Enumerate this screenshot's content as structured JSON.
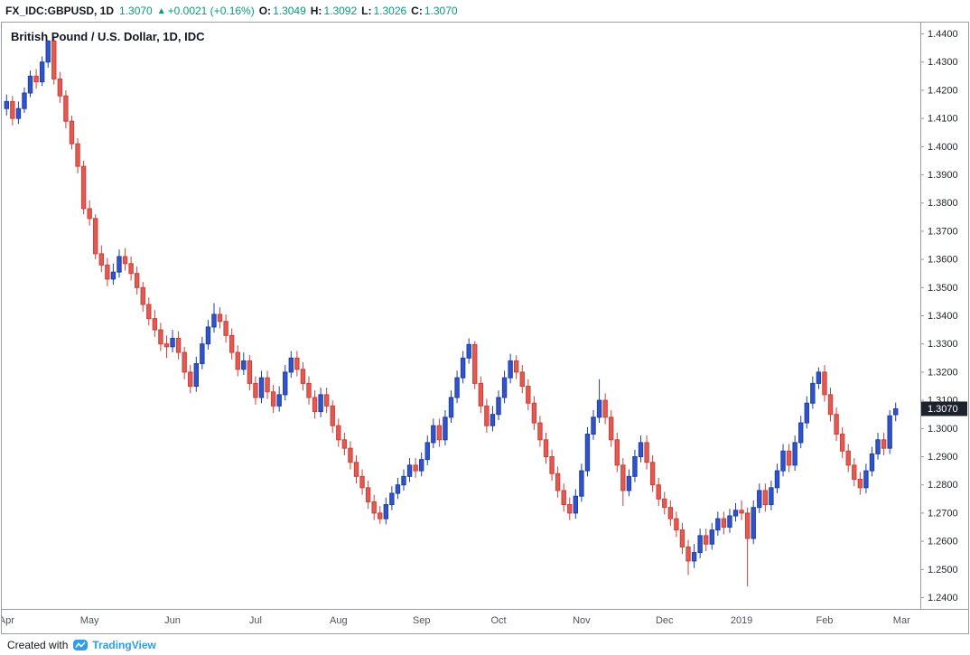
{
  "header": {
    "symbol": "FX_IDC:GBPUSD, 1D",
    "price": "1.3070",
    "arrow": "▲",
    "change": "+0.0021 (+0.16%)",
    "o_label": "O:",
    "o_value": "1.3049",
    "h_label": "H:",
    "h_value": "1.3092",
    "l_label": "L:",
    "l_value": "1.3026",
    "c_label": "C:",
    "c_value": "1.3070"
  },
  "chart": {
    "title": "British Pound / U.S. Dollar, 1D, IDC"
  },
  "footer": {
    "created_with": "Created with",
    "brand": "TradingView"
  },
  "colors": {
    "up_body": "#3253c9",
    "up_border": "#1e3fa6",
    "down_body": "#e25a52",
    "down_border": "#cf3f38",
    "green": "#089981",
    "badge_bg": "#1e222d",
    "axis_line": "#999ca3",
    "axis_text": "#23262d",
    "time_text": "#50535e",
    "brand_blue": "#2f9de8"
  },
  "chart_data": {
    "type": "candlestick",
    "symbol": "FX_IDC:GBPUSD",
    "timeframe": "1D",
    "title": "British Pound / U.S. Dollar, 1D, IDC",
    "last_price": 1.307,
    "ylim": [
      1.236,
      1.444
    ],
    "y_tick_min": 1.24,
    "y_tick_max": 1.44,
    "y_tick_step": 0.01,
    "x_labels": [
      {
        "label": "Apr",
        "i": 0
      },
      {
        "label": "May",
        "i": 14
      },
      {
        "label": "Jun",
        "i": 28
      },
      {
        "label": "Jul",
        "i": 42
      },
      {
        "label": "Aug",
        "i": 56
      },
      {
        "label": "Sep",
        "i": 70
      },
      {
        "label": "Oct",
        "i": 83
      },
      {
        "label": "Nov",
        "i": 97
      },
      {
        "label": "Dec",
        "i": 111
      },
      {
        "label": "2019",
        "i": 124
      },
      {
        "label": "Feb",
        "i": 138
      },
      {
        "label": "Mar",
        "i": 151
      }
    ],
    "candles": [
      [
        1.4135,
        1.4185,
        1.411,
        1.416
      ],
      [
        1.416,
        1.418,
        1.4075,
        1.41
      ],
      [
        1.41,
        1.416,
        1.408,
        1.4135
      ],
      [
        1.4135,
        1.421,
        1.412,
        1.419
      ],
      [
        1.419,
        1.427,
        1.4175,
        1.425
      ],
      [
        1.425,
        1.4275,
        1.4205,
        1.423
      ],
      [
        1.423,
        1.432,
        1.4215,
        1.43
      ],
      [
        1.43,
        1.4377,
        1.428,
        1.4375
      ],
      [
        1.4375,
        1.4385,
        1.422,
        1.424
      ],
      [
        1.424,
        1.4265,
        1.4155,
        1.418
      ],
      [
        1.418,
        1.42,
        1.4065,
        1.409
      ],
      [
        1.409,
        1.411,
        1.399,
        1.401
      ],
      [
        1.401,
        1.403,
        1.3905,
        1.393
      ],
      [
        1.393,
        1.395,
        1.376,
        1.378
      ],
      [
        1.378,
        1.381,
        1.372,
        1.3745
      ],
      [
        1.3745,
        1.376,
        1.36,
        1.362
      ],
      [
        1.362,
        1.365,
        1.3555,
        1.358
      ],
      [
        1.358,
        1.3605,
        1.3505,
        1.353
      ],
      [
        1.353,
        1.3585,
        1.351,
        1.3555
      ],
      [
        1.3555,
        1.3635,
        1.3535,
        1.361
      ],
      [
        1.361,
        1.364,
        1.356,
        1.3585
      ],
      [
        1.3585,
        1.361,
        1.3525,
        1.355
      ],
      [
        1.355,
        1.3575,
        1.3475,
        1.35
      ],
      [
        1.35,
        1.352,
        1.3415,
        1.344
      ],
      [
        1.344,
        1.3465,
        1.3365,
        1.339
      ],
      [
        1.339,
        1.342,
        1.3325,
        1.335
      ],
      [
        1.335,
        1.3375,
        1.3275,
        1.33
      ],
      [
        1.33,
        1.333,
        1.325,
        1.329
      ],
      [
        1.329,
        1.335,
        1.327,
        1.332
      ],
      [
        1.332,
        1.3345,
        1.3245,
        1.327
      ],
      [
        1.327,
        1.329,
        1.3175,
        1.32
      ],
      [
        1.32,
        1.3225,
        1.3125,
        1.315
      ],
      [
        1.315,
        1.3255,
        1.313,
        1.323
      ],
      [
        1.323,
        1.3325,
        1.321,
        1.33
      ],
      [
        1.33,
        1.3385,
        1.328,
        1.336
      ],
      [
        1.336,
        1.3445,
        1.334,
        1.3405
      ],
      [
        1.3405,
        1.343,
        1.3355,
        1.338
      ],
      [
        1.338,
        1.3405,
        1.3305,
        1.333
      ],
      [
        1.333,
        1.3355,
        1.3245,
        1.327
      ],
      [
        1.327,
        1.3295,
        1.3185,
        1.321
      ],
      [
        1.321,
        1.327,
        1.319,
        1.324
      ],
      [
        1.324,
        1.326,
        1.3135,
        1.316
      ],
      [
        1.316,
        1.3185,
        1.3085,
        1.311
      ],
      [
        1.311,
        1.3205,
        1.309,
        1.318
      ],
      [
        1.318,
        1.3205,
        1.3105,
        1.313
      ],
      [
        1.313,
        1.3155,
        1.3055,
        1.308
      ],
      [
        1.308,
        1.315,
        1.306,
        1.312
      ],
      [
        1.312,
        1.3225,
        1.31,
        1.32
      ],
      [
        1.32,
        1.3275,
        1.318,
        1.325
      ],
      [
        1.325,
        1.3275,
        1.3185,
        1.321
      ],
      [
        1.321,
        1.3235,
        1.3135,
        1.316
      ],
      [
        1.316,
        1.3185,
        1.3085,
        1.311
      ],
      [
        1.311,
        1.3135,
        1.3035,
        1.306
      ],
      [
        1.306,
        1.3145,
        1.304,
        1.312
      ],
      [
        1.312,
        1.3145,
        1.3055,
        1.308
      ],
      [
        1.308,
        1.31,
        1.2985,
        1.301
      ],
      [
        1.301,
        1.3035,
        1.2935,
        1.296
      ],
      [
        1.296,
        1.2985,
        1.2905,
        1.293
      ],
      [
        1.293,
        1.2955,
        1.2855,
        1.288
      ],
      [
        1.288,
        1.2905,
        1.2805,
        1.283
      ],
      [
        1.283,
        1.2855,
        1.2765,
        1.279
      ],
      [
        1.279,
        1.2815,
        1.2715,
        1.274
      ],
      [
        1.274,
        1.2765,
        1.2675,
        1.27
      ],
      [
        1.27,
        1.2725,
        1.2662,
        1.268
      ],
      [
        1.268,
        1.2755,
        1.266,
        1.273
      ],
      [
        1.273,
        1.2795,
        1.271,
        1.277
      ],
      [
        1.277,
        1.2825,
        1.275,
        1.28
      ],
      [
        1.28,
        1.2855,
        1.278,
        1.283
      ],
      [
        1.283,
        1.2895,
        1.281,
        1.287
      ],
      [
        1.287,
        1.2895,
        1.2825,
        1.285
      ],
      [
        1.285,
        1.2915,
        1.283,
        1.289
      ],
      [
        1.289,
        1.2975,
        1.287,
        1.295
      ],
      [
        1.295,
        1.3035,
        1.293,
        1.301
      ],
      [
        1.301,
        1.3035,
        1.2935,
        1.296
      ],
      [
        1.296,
        1.3065,
        1.294,
        1.304
      ],
      [
        1.304,
        1.3135,
        1.302,
        1.311
      ],
      [
        1.311,
        1.3205,
        1.309,
        1.318
      ],
      [
        1.318,
        1.3275,
        1.316,
        1.325
      ],
      [
        1.325,
        1.332,
        1.323,
        1.3298
      ],
      [
        1.3298,
        1.331,
        1.314,
        1.316
      ],
      [
        1.316,
        1.3185,
        1.3055,
        1.308
      ],
      [
        1.308,
        1.3105,
        1.2985,
        1.301
      ],
      [
        1.301,
        1.308,
        1.299,
        1.305
      ],
      [
        1.305,
        1.3135,
        1.303,
        1.311
      ],
      [
        1.311,
        1.3205,
        1.309,
        1.318
      ],
      [
        1.318,
        1.3265,
        1.316,
        1.324
      ],
      [
        1.324,
        1.326,
        1.3175,
        1.32
      ],
      [
        1.32,
        1.3225,
        1.3125,
        1.315
      ],
      [
        1.315,
        1.3175,
        1.3065,
        1.309
      ],
      [
        1.309,
        1.3115,
        1.2995,
        1.302
      ],
      [
        1.302,
        1.3045,
        1.2935,
        1.296
      ],
      [
        1.296,
        1.2985,
        1.2875,
        1.29
      ],
      [
        1.29,
        1.2925,
        1.2815,
        1.284
      ],
      [
        1.284,
        1.2865,
        1.2755,
        1.278
      ],
      [
        1.278,
        1.2805,
        1.2705,
        1.273
      ],
      [
        1.273,
        1.2755,
        1.2675,
        1.27
      ],
      [
        1.27,
        1.2785,
        1.268,
        1.276
      ],
      [
        1.276,
        1.2875,
        1.274,
        1.285
      ],
      [
        1.285,
        1.3005,
        1.283,
        1.298
      ],
      [
        1.298,
        1.3065,
        1.296,
        1.304
      ],
      [
        1.304,
        1.3175,
        1.302,
        1.31
      ],
      [
        1.31,
        1.3125,
        1.3015,
        1.304
      ],
      [
        1.304,
        1.3065,
        1.2935,
        1.296
      ],
      [
        1.296,
        1.2985,
        1.2845,
        1.287
      ],
      [
        1.287,
        1.2895,
        1.2725,
        1.278
      ],
      [
        1.278,
        1.2855,
        1.276,
        1.283
      ],
      [
        1.283,
        1.2925,
        1.281,
        1.29
      ],
      [
        1.29,
        1.2975,
        1.288,
        1.295
      ],
      [
        1.295,
        1.2975,
        1.2855,
        1.288
      ],
      [
        1.288,
        1.2905,
        1.2775,
        1.28
      ],
      [
        1.28,
        1.2825,
        1.2725,
        1.275
      ],
      [
        1.275,
        1.2775,
        1.2695,
        1.272
      ],
      [
        1.272,
        1.2745,
        1.2655,
        1.268
      ],
      [
        1.268,
        1.2705,
        1.2615,
        1.264
      ],
      [
        1.264,
        1.2665,
        1.2555,
        1.258
      ],
      [
        1.258,
        1.2605,
        1.248,
        1.253
      ],
      [
        1.253,
        1.259,
        1.2505,
        1.256
      ],
      [
        1.256,
        1.2645,
        1.254,
        1.262
      ],
      [
        1.262,
        1.2645,
        1.2565,
        1.259
      ],
      [
        1.259,
        1.2665,
        1.257,
        1.264
      ],
      [
        1.264,
        1.2705,
        1.262,
        1.268
      ],
      [
        1.268,
        1.2705,
        1.2625,
        1.265
      ],
      [
        1.265,
        1.2715,
        1.263,
        1.269
      ],
      [
        1.269,
        1.2735,
        1.267,
        1.271
      ],
      [
        1.271,
        1.2745,
        1.2675,
        1.27
      ],
      [
        1.27,
        1.272,
        1.244,
        1.261
      ],
      [
        1.261,
        1.2745,
        1.259,
        1.272
      ],
      [
        1.272,
        1.2805,
        1.27,
        1.278
      ],
      [
        1.278,
        1.2805,
        1.2705,
        1.273
      ],
      [
        1.273,
        1.2815,
        1.271,
        1.279
      ],
      [
        1.279,
        1.2875,
        1.277,
        1.285
      ],
      [
        1.285,
        1.2945,
        1.283,
        1.292
      ],
      [
        1.292,
        1.2945,
        1.2845,
        1.287
      ],
      [
        1.287,
        1.2975,
        1.285,
        1.295
      ],
      [
        1.295,
        1.3045,
        1.293,
        1.302
      ],
      [
        1.302,
        1.3115,
        1.3,
        1.309
      ],
      [
        1.309,
        1.3185,
        1.307,
        1.316
      ],
      [
        1.316,
        1.3217,
        1.314,
        1.32
      ],
      [
        1.32,
        1.3225,
        1.3095,
        1.312
      ],
      [
        1.312,
        1.3145,
        1.3025,
        1.305
      ],
      [
        1.305,
        1.3075,
        1.2955,
        1.298
      ],
      [
        1.298,
        1.3005,
        1.2895,
        1.292
      ],
      [
        1.292,
        1.2945,
        1.2845,
        1.287
      ],
      [
        1.287,
        1.2895,
        1.2795,
        1.282
      ],
      [
        1.282,
        1.2845,
        1.2765,
        1.279
      ],
      [
        1.279,
        1.2875,
        1.277,
        1.285
      ],
      [
        1.285,
        1.2935,
        1.283,
        1.291
      ],
      [
        1.291,
        1.2985,
        1.289,
        1.296
      ],
      [
        1.296,
        1.2985,
        1.2905,
        1.293
      ],
      [
        1.293,
        1.3065,
        1.291,
        1.3045
      ],
      [
        1.3049,
        1.3092,
        1.3026,
        1.307
      ]
    ]
  }
}
